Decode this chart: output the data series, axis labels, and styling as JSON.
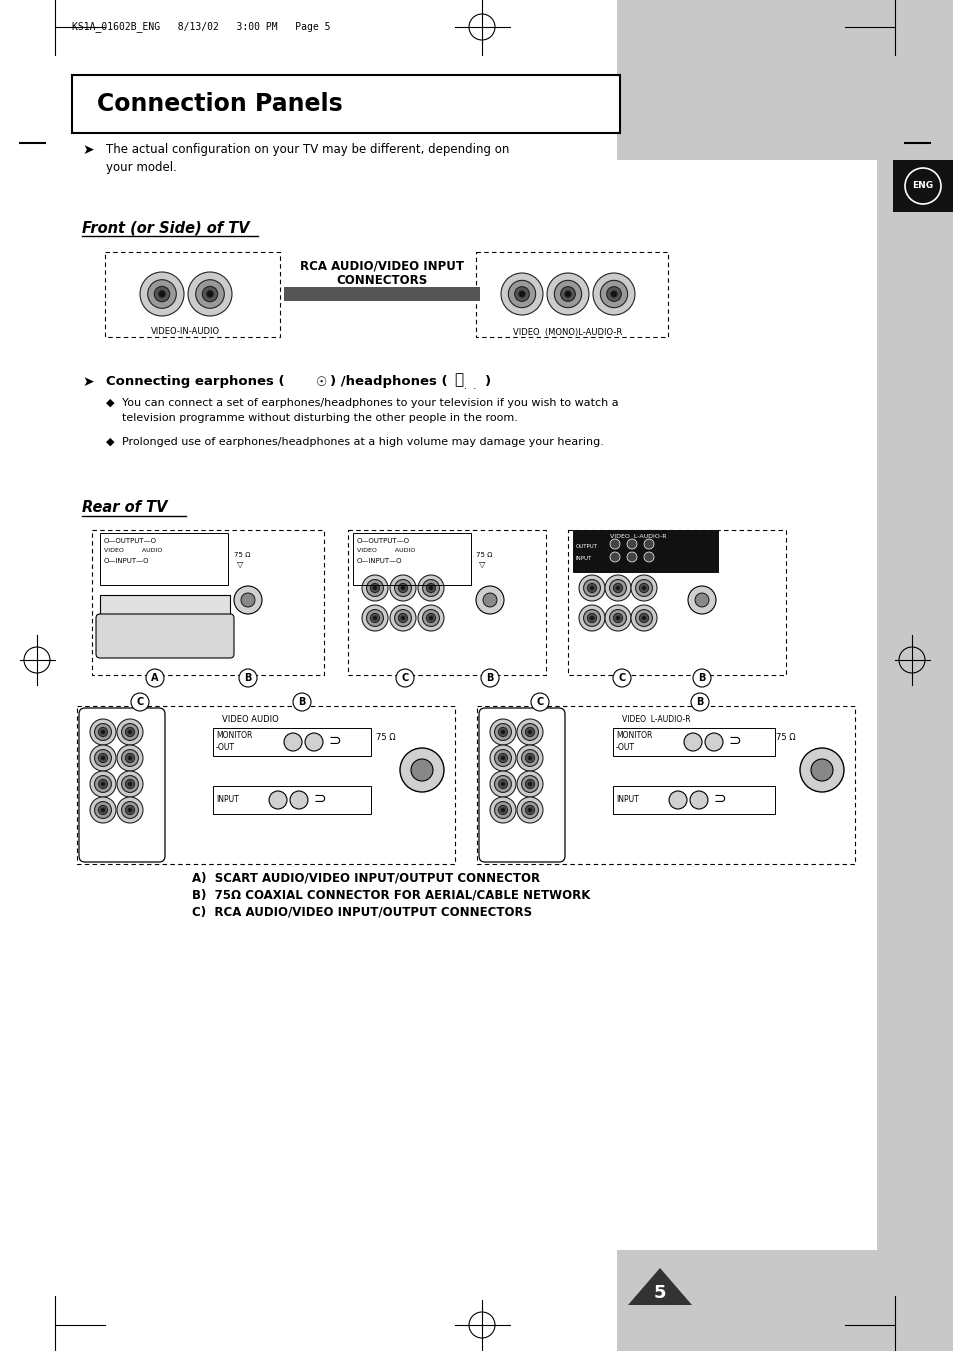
{
  "title": "Connection Panels",
  "bg_color": "#ffffff",
  "gray_color": "#c0c0c0",
  "dark_gray": "#333333",
  "page_number": "5",
  "header_text": "KS1A_01602B_ENG   8/13/02   3:00 PM   Page 5",
  "section1_title": "Front (or Side) of TV",
  "section2_title": "Rear of TV",
  "note_text1": "The actual configuration on your TV may be different, depending on",
  "note_text2": "your model.",
  "arrow_label_line1": "RCA AUDIO/VIDEO INPUT",
  "arrow_label_line2": "CONNECTORS",
  "left_box_label": "VIDEO-IN-AUDIO",
  "right_box_label": "VIDEO  (MONO)L-AUDIO-R",
  "earphone_line1": "Connecting earphones (",
  "earphone_line2": ") /headphones (",
  "earphone_line3": ")",
  "bullet1_line1": "You can connect a set of earphones/headphones to your television if you wish to watch a",
  "bullet1_line2": "television programme without disturbing the other people in the room.",
  "bullet2": "Prolonged use of earphones/headphones at a high volume may damage your hearing.",
  "legend_a": "A)  SCART AUDIO/VIDEO INPUT/OUTPUT CONNECTOR",
  "legend_b": "B)  75Ω COAXIAL CONNECTOR FOR AERIAL/CABLE NETWORK",
  "legend_c": "C)  RCA AUDIO/VIDEO INPUT/OUTPUT CONNECTORS",
  "eng_label": "ENG"
}
